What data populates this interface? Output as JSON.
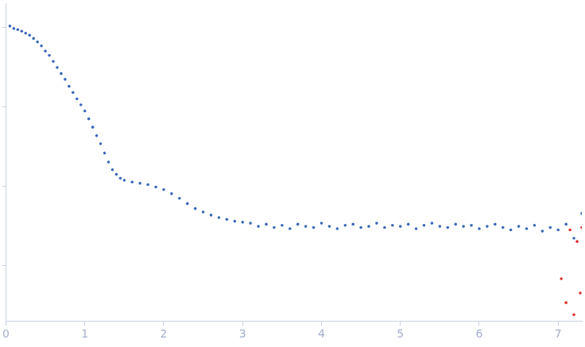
{
  "chart_data": {
    "type": "scatter",
    "log": "y",
    "grid": false,
    "tick_labels": "x",
    "xlim": [
      0,
      7.3
    ],
    "xticks": [
      0,
      1,
      2,
      3,
      4,
      5,
      6,
      7
    ],
    "ylim": [
      0.002,
      20
    ],
    "yticks": [
      0.01,
      0.1,
      1,
      10
    ],
    "series": [
      {
        "color": "#3a66b8",
        "marker": "circle",
        "x": [
          0.05,
          0.1,
          0.15,
          0.2,
          0.25,
          0.3,
          0.35,
          0.4,
          0.45,
          0.5,
          0.55,
          0.6,
          0.65,
          0.7,
          0.75,
          0.8,
          0.85,
          0.9,
          0.95,
          1.0,
          1.05,
          1.1,
          1.15,
          1.2,
          1.25,
          1.3,
          1.35,
          1.4,
          1.45,
          1.5,
          1.6,
          1.7,
          1.8,
          1.9,
          2.0,
          2.1,
          2.2,
          2.3,
          2.4,
          2.5,
          2.6,
          2.7,
          2.8,
          2.9,
          3.0,
          3.1,
          3.2,
          3.3,
          3.4,
          3.5,
          3.6,
          3.7,
          3.8,
          3.9,
          4.0,
          4.1,
          4.2,
          4.3,
          4.4,
          4.5,
          4.6,
          4.7,
          4.8,
          4.9,
          5.0,
          5.1,
          5.2,
          5.3,
          5.4,
          5.5,
          5.6,
          5.7,
          5.8,
          5.9,
          6.0,
          6.1,
          6.2,
          6.3,
          6.4,
          6.5,
          6.6,
          6.7,
          6.8,
          6.9,
          7.0,
          7.1,
          7.2,
          7.3
        ],
        "values": [
          10.3,
          9.6,
          9.3,
          8.9,
          8.4,
          7.9,
          7.2,
          6.5,
          5.8,
          5.0,
          4.4,
          3.7,
          3.1,
          2.6,
          2.2,
          1.8,
          1.5,
          1.25,
          1.05,
          0.88,
          0.7,
          0.55,
          0.43,
          0.34,
          0.26,
          0.2,
          0.16,
          0.14,
          0.125,
          0.118,
          0.112,
          0.108,
          0.104,
          0.097,
          0.09,
          0.08,
          0.07,
          0.06,
          0.052,
          0.047,
          0.043,
          0.04,
          0.038,
          0.036,
          0.035,
          0.034,
          0.031,
          0.033,
          0.03,
          0.032,
          0.029,
          0.033,
          0.031,
          0.03,
          0.034,
          0.031,
          0.029,
          0.032,
          0.033,
          0.03,
          0.031,
          0.034,
          0.03,
          0.032,
          0.031,
          0.033,
          0.029,
          0.032,
          0.034,
          0.031,
          0.03,
          0.033,
          0.031,
          0.032,
          0.029,
          0.031,
          0.033,
          0.03,
          0.028,
          0.031,
          0.029,
          0.032,
          0.027,
          0.03,
          0.028,
          0.033,
          0.022,
          0.045
        ]
      },
      {
        "color": "#e03030",
        "marker": "circle",
        "x": [
          7.04,
          7.1,
          7.15,
          7.2,
          7.24,
          7.28,
          7.3
        ],
        "values": [
          0.0068,
          0.0034,
          0.028,
          0.0024,
          0.02,
          0.0045,
          0.03
        ]
      }
    ]
  }
}
